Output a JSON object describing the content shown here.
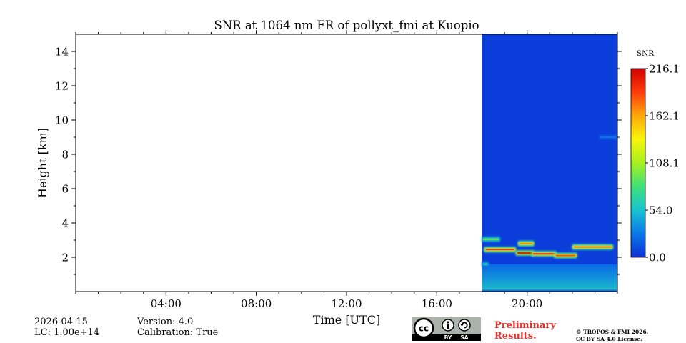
{
  "chart_data": {
    "type": "heatmap",
    "title": "SNR at 1064 nm FR of pollyxt_fmi at Kuopio",
    "xlabel": "Time [UTC]",
    "ylabel": "Height [km]",
    "xlim_hours": [
      0,
      24
    ],
    "ylim_km": [
      0,
      15
    ],
    "x_ticks": [
      {
        "hour": 4,
        "label": "04:00"
      },
      {
        "hour": 8,
        "label": "08:00"
      },
      {
        "hour": 12,
        "label": "12:00"
      },
      {
        "hour": 16,
        "label": "16:00"
      },
      {
        "hour": 20,
        "label": "20:00"
      }
    ],
    "y_ticks": [
      {
        "value": 2,
        "label": "2"
      },
      {
        "value": 4,
        "label": "4"
      },
      {
        "value": 6,
        "label": "6"
      },
      {
        "value": 8,
        "label": "8"
      },
      {
        "value": 10,
        "label": "10"
      },
      {
        "value": 12,
        "label": "12"
      },
      {
        "value": 14,
        "label": "14"
      }
    ],
    "data_start_hour": 18.0,
    "data_end_hour": 24.0,
    "background_snr": 5,
    "colorbar": {
      "title": "SNR",
      "min": 0.0,
      "max": 216.1,
      "ticks": [
        {
          "value": 0.0,
          "label": "0.0"
        },
        {
          "value": 54.0,
          "label": "54.0"
        },
        {
          "value": 108.1,
          "label": "108.1"
        },
        {
          "value": 162.1,
          "label": "162.1"
        },
        {
          "value": 216.1,
          "label": "216.1"
        }
      ],
      "colors": [
        "#0b2fd8",
        "#0a78e8",
        "#18c4d0",
        "#3fe07a",
        "#a8f020",
        "#f6f60a",
        "#ffa80a",
        "#ff3c0a",
        "#d00000"
      ]
    },
    "layers": [
      {
        "name": "aerosol-layer-upper",
        "start_hour": 18.0,
        "end_hour": 18.8,
        "height_km": 3.05,
        "snr": 90
      },
      {
        "name": "cloud-layer-1",
        "start_hour": 18.1,
        "end_hour": 19.5,
        "height_km": 2.45,
        "snr": 190
      },
      {
        "name": "cloud-layer-2",
        "start_hour": 19.5,
        "end_hour": 20.3,
        "height_km": 2.25,
        "snr": 200
      },
      {
        "name": "aerosol-layer-mid",
        "start_hour": 19.6,
        "end_hour": 20.3,
        "height_km": 2.8,
        "snr": 170
      },
      {
        "name": "cloud-layer-3",
        "start_hour": 20.2,
        "end_hour": 21.3,
        "height_km": 2.2,
        "snr": 195
      },
      {
        "name": "cloud-layer-4",
        "start_hour": 21.2,
        "end_hour": 22.2,
        "height_km": 2.1,
        "snr": 185
      },
      {
        "name": "aerosol-layer-late",
        "start_hour": 22.0,
        "end_hour": 23.8,
        "height_km": 2.6,
        "snr": 175
      },
      {
        "name": "boundary-layer-start",
        "start_hour": 18.0,
        "end_hour": 18.3,
        "height_km": 1.6,
        "snr": 60
      },
      {
        "name": "faint-layer-9km",
        "start_hour": 23.2,
        "end_hour": 24.0,
        "height_km": 9.0,
        "snr": 25
      }
    ]
  },
  "info": {
    "date": "2026-04-15",
    "lidar_constant": "LC: 1.00e+14",
    "version": "Version: 4.0",
    "calibration": "Calibration: True"
  },
  "branding": {
    "preliminary_line1": "Preliminary",
    "preliminary_line2": "Results.",
    "copyright_line1": "© TROPOS & FMI 2026.",
    "copyright_line2": "CC BY SA 4.0 License.",
    "cc_label": "cc",
    "by_label": "BY",
    "sa_label": "SA"
  }
}
